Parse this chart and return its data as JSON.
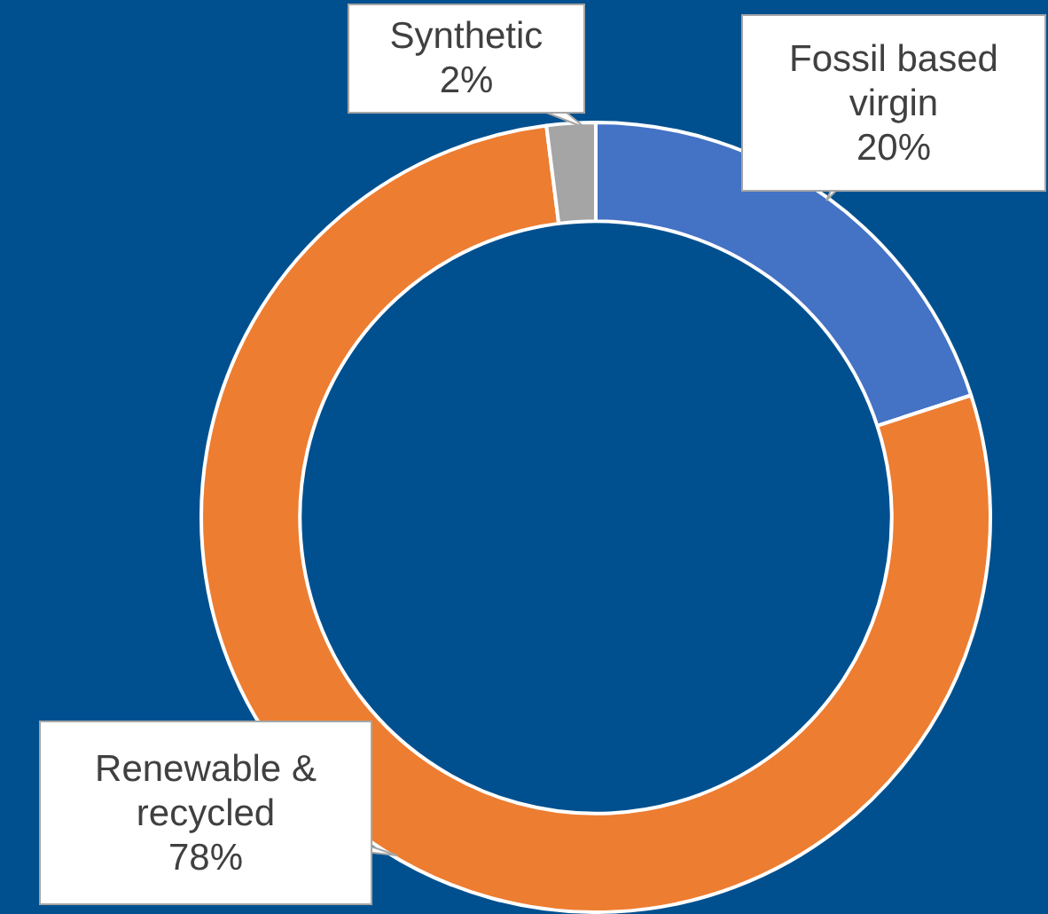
{
  "chart_data": {
    "type": "donut",
    "categories": [
      "Fossil based virgin",
      "Renewable & recycled",
      "Synthetic"
    ],
    "values": [
      20,
      78,
      2
    ],
    "value_labels": [
      "20%",
      "78%",
      "2%"
    ],
    "colors": [
      "#4472c4",
      "#ed7d31",
      "#a5a5a5"
    ],
    "legend": false
  }
}
